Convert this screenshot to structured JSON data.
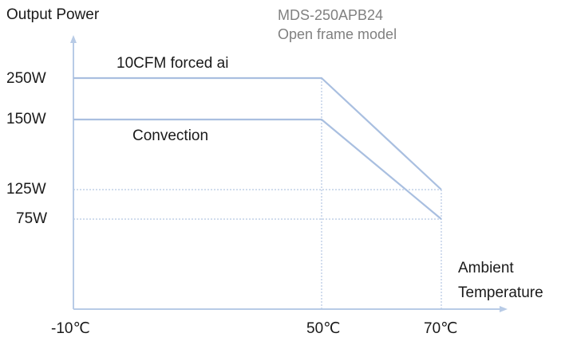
{
  "header": {
    "model_name": "MDS-250APB24",
    "model_desc": "Open frame model"
  },
  "colors": {
    "curve": "#a9bfe0",
    "axis": "#b8cbe6",
    "grid": "#b4c6e2",
    "text": "#1a1a1a",
    "model_text": "#808080"
  },
  "chart_data": {
    "type": "line",
    "ylabel": "Output Power",
    "xlabel_line1": "Ambient",
    "xlabel_line2": "Temperature",
    "x_ticks": [
      {
        "value": -10,
        "label": "-10℃"
      },
      {
        "value": 50,
        "label": "50℃"
      },
      {
        "value": 70,
        "label": "70℃"
      }
    ],
    "y_ticks": [
      {
        "value": 250,
        "label": "250W"
      },
      {
        "value": 150,
        "label": "150W"
      },
      {
        "value": 125,
        "label": "125W"
      },
      {
        "value": 75,
        "label": "75W"
      }
    ],
    "series": [
      {
        "name": "10CFM forced ai",
        "points": [
          [
            -10,
            250
          ],
          [
            50,
            250
          ],
          [
            70,
            125
          ]
        ]
      },
      {
        "name": "Convection",
        "points": [
          [
            -10,
            150
          ],
          [
            50,
            150
          ],
          [
            70,
            75
          ]
        ]
      }
    ],
    "grid": "dashed reference lines at 50℃, 70℃, 125W and 75W"
  }
}
